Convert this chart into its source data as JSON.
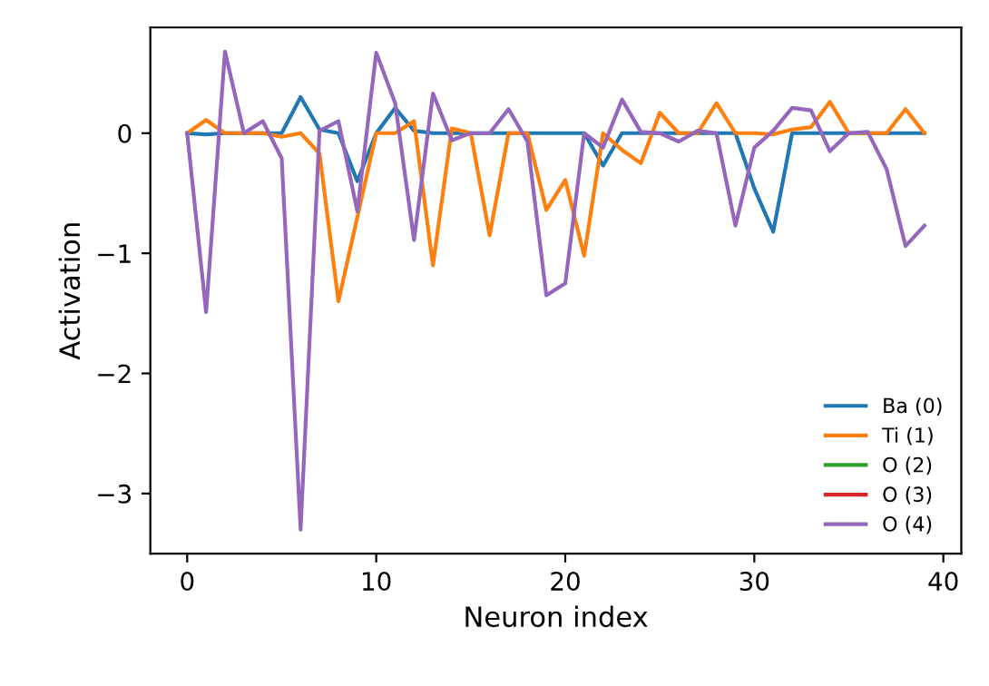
{
  "chart_data": {
    "type": "line",
    "xlabel": "Neuron index",
    "ylabel": "Activation",
    "x": [
      0,
      1,
      2,
      3,
      4,
      5,
      6,
      7,
      8,
      9,
      10,
      11,
      12,
      13,
      14,
      15,
      16,
      17,
      18,
      19,
      20,
      21,
      22,
      23,
      24,
      25,
      26,
      27,
      28,
      29,
      30,
      31,
      32,
      33,
      34,
      35,
      36,
      37,
      38,
      39
    ],
    "series": [
      {
        "name": "Ba (0)",
        "color": "#1f77b4",
        "values": [
          0,
          -0.01,
          0,
          0,
          0,
          0,
          0.3,
          0.03,
          0,
          -0.4,
          0,
          0.21,
          0.02,
          0,
          0,
          0,
          0,
          0,
          0,
          0,
          0,
          0,
          -0.27,
          0,
          0,
          0,
          0,
          0,
          0,
          0,
          -0.46,
          -0.82,
          0,
          0,
          0,
          0,
          0,
          0,
          0,
          0
        ]
      },
      {
        "name": "Ti (1)",
        "color": "#ff7f0e",
        "values": [
          0,
          0.11,
          0,
          0,
          0,
          -0.03,
          0,
          -0.17,
          -1.4,
          -0.7,
          0,
          0,
          0.1,
          -1.1,
          0.04,
          0,
          -0.85,
          0,
          0,
          -0.64,
          -0.39,
          -1.02,
          0,
          -0.14,
          -0.25,
          0.17,
          0,
          0,
          0.25,
          0,
          0,
          -0.01,
          0.03,
          0.05,
          0.26,
          0,
          0,
          0,
          0.2,
          0
        ]
      },
      {
        "name": "O (2)",
        "color": "#2ca02c",
        "values": [
          null,
          null,
          null,
          null,
          null,
          null,
          null,
          null,
          null,
          null,
          null,
          null,
          null,
          null,
          null,
          null,
          null,
          null,
          null,
          null,
          null,
          null,
          null,
          null,
          null,
          null,
          null,
          null,
          null,
          null,
          null,
          null,
          null,
          null,
          null,
          null,
          null,
          null,
          null,
          null
        ]
      },
      {
        "name": "O (3)",
        "color": "#d62728",
        "values": [
          null,
          null,
          null,
          null,
          null,
          null,
          null,
          null,
          null,
          null,
          null,
          null,
          null,
          null,
          null,
          null,
          null,
          null,
          null,
          null,
          null,
          null,
          null,
          null,
          null,
          null,
          null,
          null,
          null,
          null,
          null,
          null,
          null,
          null,
          null,
          null,
          null,
          null,
          null,
          null
        ]
      },
      {
        "name": "O (4)",
        "color": "#9467bd",
        "values": [
          0,
          -1.49,
          0.68,
          0,
          0.1,
          -0.21,
          -3.3,
          0.02,
          0.1,
          -0.65,
          0.67,
          0.25,
          -0.89,
          0.33,
          -0.06,
          0,
          0,
          0.2,
          -0.07,
          -1.35,
          -1.25,
          0,
          -0.12,
          0.28,
          0.01,
          0,
          -0.07,
          0.02,
          0,
          -0.77,
          -0.12,
          0.02,
          0.21,
          0.19,
          -0.15,
          0,
          0.01,
          -0.3,
          -0.94,
          -0.77
        ]
      }
    ],
    "xlim": [
      -1.95,
      40.95
    ],
    "ylim": [
      -3.5,
      0.88
    ],
    "xticks": [
      0,
      10,
      20,
      30,
      40
    ],
    "yticks": [
      {
        "value": 0,
        "label": "0"
      },
      {
        "value": -1,
        "label": "−1"
      },
      {
        "value": -2,
        "label": "−2"
      },
      {
        "value": -3,
        "label": "−3"
      }
    ],
    "legend": "bottom right",
    "grid": false
  }
}
